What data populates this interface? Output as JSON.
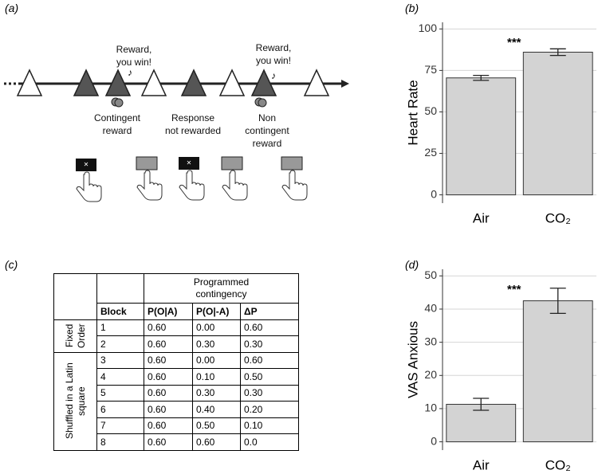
{
  "panel_labels": [
    "(a)",
    "(b)",
    "(c)",
    "(d)"
  ],
  "diagram": {
    "rewards": [
      "Reward, you win!",
      "Reward, you win!"
    ],
    "events": [
      "Contingent reward",
      "Response not rewarded",
      "Non contingent reward"
    ]
  },
  "table": {
    "header": "Programmed contingency",
    "columns": [
      "Block",
      "P(O|A)",
      "P(O|-A)",
      "ΔP"
    ],
    "groups": [
      "Fixed Order",
      "Shuffled in a Latin square"
    ],
    "rows": [
      [
        "1",
        "0.60",
        "0.00",
        "0.60"
      ],
      [
        "2",
        "0.60",
        "0.30",
        "0.30"
      ],
      [
        "3",
        "0.60",
        "0.00",
        "0.60"
      ],
      [
        "4",
        "0.60",
        "0.10",
        "0.50"
      ],
      [
        "5",
        "0.60",
        "0.30",
        "0.30"
      ],
      [
        "6",
        "0.60",
        "0.40",
        "0.20"
      ],
      [
        "7",
        "0.60",
        "0.50",
        "0.10"
      ],
      [
        "8",
        "0.60",
        "0.60",
        "0.0"
      ]
    ]
  },
  "chart_data": [
    {
      "type": "bar",
      "y_label": "Heart Rate",
      "annotation": "***",
      "categories": [
        "Air",
        "CO₂"
      ],
      "values": [
        70.5,
        86
      ],
      "errors": [
        1.5,
        2
      ],
      "color": "#d3d3d3",
      "ylim": [
        -5,
        104
      ],
      "yticks": [
        0,
        25,
        50,
        75,
        100
      ],
      "grid": true
    },
    {
      "type": "bar",
      "y_label": "VAS Anxious",
      "annotation": "***",
      "categories": [
        "Air",
        "CO₂"
      ],
      "values": [
        11.3,
        42.5
      ],
      "errors": [
        1.8,
        3.8
      ],
      "color": "#d3d3d3",
      "ylim": [
        -2.5,
        52
      ],
      "yticks": [
        0,
        10,
        20,
        30,
        40,
        50
      ],
      "grid": true
    }
  ]
}
